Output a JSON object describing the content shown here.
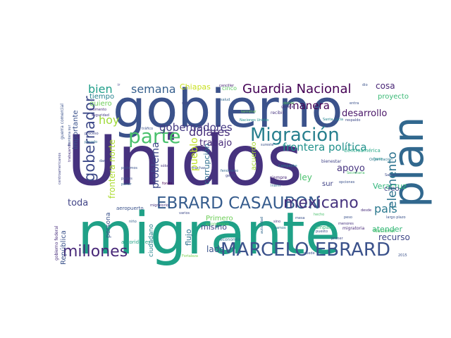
{
  "palette": {
    "deep_purple": "#440154",
    "indigo": "#46327e",
    "slate_blue": "#365c8d",
    "teal_blue": "#277f8e",
    "teal": "#1fa187",
    "green": "#4ac16d",
    "lime": "#a0da39",
    "yellow": "#d4d829"
  },
  "words": [
    {
      "text": "Unidos",
      "color": "#46327e"
    },
    {
      "text": "migrante",
      "color": "#1fa187"
    },
    {
      "text": "gobierno",
      "color": "#3b528b"
    },
    {
      "text": "plan",
      "color": "#31688e"
    },
    {
      "text": "MARCELO EBRARD",
      "color": "#3b528b"
    },
    {
      "text": "EBRARD CASAUBON",
      "color": "#365c8d"
    },
    {
      "text": "Migración",
      "color": "#277f8e"
    },
    {
      "text": "parte",
      "color": "#4ac16d"
    },
    {
      "text": "Guardia Nacional",
      "color": "#440154"
    },
    {
      "text": "millones",
      "color": "#482878"
    },
    {
      "text": "mexicano",
      "color": "#46327e"
    },
    {
      "text": "gobernador",
      "color": "#3e4a89"
    },
    {
      "text": "elemento",
      "color": "#2c728e"
    },
    {
      "text": "semana",
      "color": "#355f8d"
    },
    {
      "text": "dólares",
      "color": "#472d7b"
    },
    {
      "text": "gobernadores",
      "color": "#443983"
    },
    {
      "text": "frontera política",
      "color": "#21918c"
    },
    {
      "text": "manera",
      "color": "#440154"
    },
    {
      "text": "país",
      "color": "#2a788e"
    },
    {
      "text": "bien",
      "color": "#1f9e89"
    },
    {
      "text": "hoy",
      "color": "#a0da39"
    },
    {
      "text": "toda",
      "color": "#414487"
    },
    {
      "text": "frontera norte",
      "color": "#addc30"
    },
    {
      "text": "pueblo",
      "color": "#bddf26"
    },
    {
      "text": "desarrollo",
      "color": "#481467"
    },
    {
      "text": "apoyo",
      "color": "#46337f"
    },
    {
      "text": "cosa",
      "color": "#482475"
    },
    {
      "text": "problema",
      "color": "#3e4989"
    },
    {
      "text": "trabajo",
      "color": "#472a7a"
    },
    {
      "text": "Chiapas",
      "color": "#c8e020"
    },
    {
      "text": "lado",
      "color": "#3b528b"
    },
    {
      "text": "recurso",
      "color": "#3f4788"
    },
    {
      "text": "atender",
      "color": "#35b779"
    },
    {
      "text": "flujo",
      "color": "#2d708e"
    },
    {
      "text": "mismo",
      "color": "#404688"
    },
    {
      "text": "corrupción",
      "color": "#2e6e8e"
    },
    {
      "text": "ley",
      "color": "#4ac16d"
    },
    {
      "text": "Veracruz",
      "color": "#31b57b"
    },
    {
      "text": "proyecto",
      "color": "#3aba76"
    },
    {
      "text": "creo",
      "color": "#3f4788"
    },
    {
      "text": "República",
      "color": "#3b528b"
    },
    {
      "text": "importante",
      "color": "#3b528b"
    },
    {
      "text": "quiero",
      "color": "#6ece58"
    },
    {
      "text": "tiempo",
      "color": "#26828e"
    },
    {
      "text": "cinco",
      "color": "#5ec962"
    },
    {
      "text": "persona",
      "color": "#3b528b"
    },
    {
      "text": "ciudadano",
      "color": "#25848e"
    },
    {
      "text": "acuerdo",
      "color": "#a8db34"
    },
    {
      "text": "sur",
      "color": "#414487"
    },
    {
      "text": "Primero",
      "color": "#6ece58"
    },
    {
      "text": "Centroamérica",
      "color": "#22a785"
    },
    {
      "text": "aeropuerto",
      "color": "#3b528b"
    },
    {
      "text": "bienestar",
      "color": "#414487"
    },
    {
      "text": "migratoria",
      "color": "#482878"
    },
    {
      "text": "Nacional",
      "color": "#4ac16d"
    },
    {
      "text": "amparo",
      "color": "#35b779"
    },
    {
      "text": "autoridades",
      "color": "#20a386"
    },
    {
      "text": "gobierno federal",
      "color": "#472d7b"
    },
    {
      "text": "guerra comercial",
      "color": "#3b528b"
    },
    {
      "text": "centroamericanos",
      "color": "#414487"
    },
    {
      "text": "seguridad",
      "color": "#443983"
    },
    {
      "text": "trabajando",
      "color": "#46327e"
    },
    {
      "text": "fenómeno",
      "color": "#31688e"
    },
    {
      "text": "siempre",
      "color": "#482878"
    },
    {
      "text": "económico",
      "color": "#5ec962"
    },
    {
      "text": "economía",
      "color": "#2c728e"
    },
    {
      "text": "recibir",
      "color": "#46337f"
    },
    {
      "text": "terminar",
      "color": "#6ece58"
    },
    {
      "text": "Campeche",
      "color": "#277f8e"
    },
    {
      "text": "respaldo",
      "color": "#3e4a89"
    },
    {
      "text": "Santa Lucía",
      "color": "#25848e"
    },
    {
      "text": "Naciones Unidas",
      "color": "#21918c"
    },
    {
      "text": "frontera sur",
      "color": "#3b528b"
    },
    {
      "text": "canciller",
      "color": "#482475"
    },
    {
      "text": "salud",
      "color": "#31688e"
    },
    {
      "text": "siete",
      "color": "#3e4989"
    },
    {
      "text": "general",
      "color": "#46327e"
    },
    {
      "text": "sureste",
      "color": "#3b528b"
    },
    {
      "text": "Organización",
      "color": "#2a788e"
    },
    {
      "text": "mesa",
      "color": "#3b528b"
    },
    {
      "text": "migratorio",
      "color": "#46337f"
    },
    {
      "text": "gente",
      "color": "#3f4788"
    },
    {
      "text": "vamos",
      "color": "#2c728e"
    },
    {
      "text": "niño",
      "color": "#355f8d"
    },
    {
      "text": "podemos",
      "color": "#3b528b"
    },
    {
      "text": "países",
      "color": "#3e4a89"
    },
    {
      "text": "poner",
      "color": "#31688e"
    },
    {
      "text": "fondo",
      "color": "#440154"
    },
    {
      "text": "sólo",
      "color": "#46327e"
    },
    {
      "text": "Inami",
      "color": "#2c728e"
    },
    {
      "text": "peso",
      "color": "#3b528b"
    },
    {
      "text": "menores",
      "color": "#46327e"
    },
    {
      "text": "proceso",
      "color": "#3f4788"
    },
    {
      "text": "momento",
      "color": "#472d7b"
    },
    {
      "text": "pasado",
      "color": "#2e6e8e"
    },
    {
      "text": "tráfico",
      "color": "#3b528b"
    },
    {
      "text": "Secretaría",
      "color": "#4ac16d"
    },
    {
      "text": "entra",
      "color": "#3b528b"
    },
    {
      "text": "Salvador",
      "color": "#3e4989"
    },
    {
      "text": "favor",
      "color": "#21918c"
    },
    {
      "text": "opciones",
      "color": "#3b528b"
    },
    {
      "text": "2015",
      "color": "#3b528b"
    },
    {
      "text": "puede",
      "color": "#3b528b"
    },
    {
      "text": "sino",
      "color": "#443983"
    },
    {
      "text": "dio",
      "color": "#3b528b"
    },
    {
      "text": "ir",
      "color": "#414487"
    },
    {
      "text": "hecho",
      "color": "#4ac16d"
    },
    {
      "text": "muchas",
      "color": "#3b528b"
    },
    {
      "text": "varios",
      "color": "#3e4a89"
    },
    {
      "text": "largo plazo",
      "color": "#3b528b"
    },
    {
      "text": "autoridad",
      "color": "#31688e"
    },
    {
      "text": "donde",
      "color": "#5ec962"
    },
    {
      "text": "puesto",
      "color": "#3b528b"
    },
    {
      "text": "Fortaleza",
      "color": "#7ad151"
    },
    {
      "text": "dar",
      "color": "#3b528b"
    },
    {
      "text": "primer",
      "color": "#3e4989"
    },
    {
      "text": "desde",
      "color": "#472d7b"
    }
  ]
}
